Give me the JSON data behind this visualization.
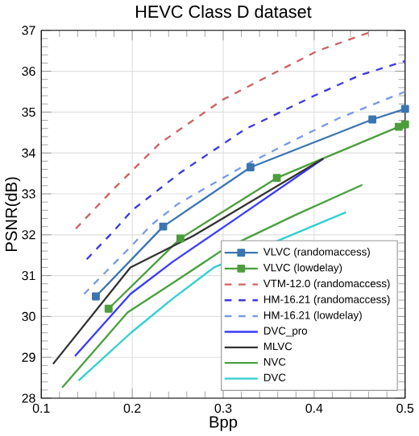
{
  "chart_data": {
    "type": "line",
    "title": "HEVC Class D dataset",
    "xlabel": "Bpp",
    "ylabel": "PSNR(dB)",
    "xlim": [
      0.1,
      0.5
    ],
    "ylim": [
      28,
      37
    ],
    "xticks": [
      0.1,
      0.2,
      0.3,
      0.4,
      0.5
    ],
    "yticks": [
      28,
      29,
      30,
      31,
      32,
      33,
      34,
      35,
      36,
      37
    ],
    "grid": true,
    "legend": "bottom right",
    "series": [
      {
        "name": "VLVC (randomaccess)",
        "color": "#3a75b0",
        "marker": "square",
        "line_style": "solid",
        "x": [
          0.16,
          0.234,
          0.33,
          0.464,
          0.5
        ],
        "values": [
          30.49,
          32.2,
          33.65,
          34.82,
          35.08
        ]
      },
      {
        "name": "VLVC (lowdelay)",
        "color": "#4c9e3c",
        "marker": "square",
        "line_style": "solid",
        "x": [
          0.174,
          0.253,
          0.359,
          0.493,
          0.5
        ],
        "values": [
          30.19,
          31.91,
          33.39,
          34.64,
          34.7
        ]
      },
      {
        "name": "VTM-12.0 (randomaccess)",
        "color": "#d06060",
        "marker": "none",
        "line_style": "dashed",
        "x": [
          0.138,
          0.18,
          0.23,
          0.3,
          0.353,
          0.404,
          0.467
        ],
        "values": [
          32.15,
          33.13,
          34.23,
          35.31,
          35.92,
          36.5,
          37.0
        ]
      },
      {
        "name": "HM-16.21 (randomaccess)",
        "color": "#3a3ae0",
        "marker": "none",
        "line_style": "dashed",
        "x": [
          0.15,
          0.18,
          0.2,
          0.253,
          0.324,
          0.4,
          0.45,
          0.5
        ],
        "values": [
          31.4,
          32.1,
          32.6,
          33.52,
          34.58,
          35.4,
          35.9,
          36.25
        ]
      },
      {
        "name": "HM-16.21 (lowdelay)",
        "color": "#7a9ae8",
        "marker": "none",
        "line_style": "dashed",
        "x": [
          0.147,
          0.198,
          0.221,
          0.25,
          0.324,
          0.375,
          0.427,
          0.5
        ],
        "values": [
          30.55,
          31.7,
          32.24,
          32.75,
          33.7,
          34.28,
          34.85,
          35.5
        ]
      },
      {
        "name": "DVC_pro",
        "color": "#3a3aff",
        "marker": "none",
        "line_style": "solid",
        "x": [
          0.137,
          0.198,
          0.244,
          0.321,
          0.41
        ],
        "values": [
          29.03,
          30.55,
          31.33,
          32.5,
          33.86
        ]
      },
      {
        "name": "MLVC",
        "color": "#333333",
        "marker": "none",
        "line_style": "solid",
        "x": [
          0.113,
          0.198,
          0.267,
          0.307,
          0.41
        ],
        "values": [
          28.84,
          31.2,
          31.97,
          32.5,
          33.86
        ]
      },
      {
        "name": "NVC",
        "color": "#4aa040",
        "marker": "none",
        "line_style": "solid",
        "x": [
          0.123,
          0.195,
          0.244,
          0.301,
          0.381,
          0.453
        ],
        "values": [
          28.26,
          30.1,
          30.81,
          31.65,
          32.5,
          33.22
        ]
      },
      {
        "name": "DVC",
        "color": "#30d0d0",
        "marker": "none",
        "line_style": "solid",
        "x": [
          0.141,
          0.198,
          0.244,
          0.29,
          0.341,
          0.435
        ],
        "values": [
          28.43,
          29.59,
          30.43,
          31.2,
          null,
          32.55
        ]
      }
    ]
  }
}
